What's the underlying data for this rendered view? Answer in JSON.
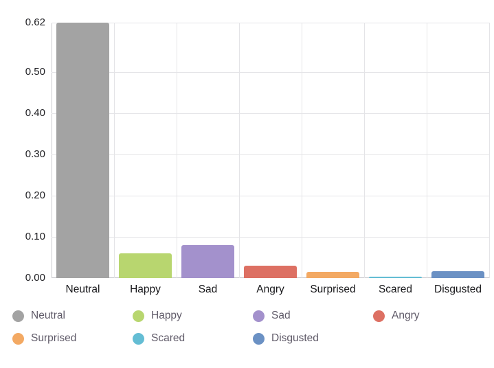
{
  "chart_data": {
    "type": "bar",
    "categories": [
      "Neutral",
      "Happy",
      "Sad",
      "Angry",
      "Surprised",
      "Scared",
      "Disgusted"
    ],
    "values": [
      0.62,
      0.06,
      0.08,
      0.03,
      0.015,
      0.004,
      0.017
    ],
    "colors": [
      "#a3a3a3",
      "#b8d66f",
      "#a391cc",
      "#dd7063",
      "#f3a963",
      "#64bdd4",
      "#6b91c4"
    ],
    "title": "",
    "xlabel": "",
    "ylabel": "",
    "ylim": [
      0,
      0.62
    ],
    "yticks": [
      0,
      0.1,
      0.2,
      0.3,
      0.4,
      0.5,
      0.62
    ],
    "ytick_labels": [
      "0.00",
      "0.10",
      "0.20",
      "0.30",
      "0.40",
      "0.50",
      "0.62"
    ],
    "grid": true,
    "legend_position": "bottom",
    "legend": [
      {
        "label": "Neutral",
        "color": "#a3a3a3"
      },
      {
        "label": "Happy",
        "color": "#b8d66f"
      },
      {
        "label": "Sad",
        "color": "#a391cc"
      },
      {
        "label": "Angry",
        "color": "#dd7063"
      },
      {
        "label": "Surprised",
        "color": "#f3a963"
      },
      {
        "label": "Scared",
        "color": "#64bdd4"
      },
      {
        "label": "Disgusted",
        "color": "#6b91c4"
      }
    ]
  },
  "style": {
    "background": "#ffffff",
    "grid_color": "#e4e4e7",
    "axis_color": "#c9c9ce",
    "y_label_color": "#202024",
    "x_label_color": "#17171a",
    "legend_text_color": "#5f5a68"
  }
}
